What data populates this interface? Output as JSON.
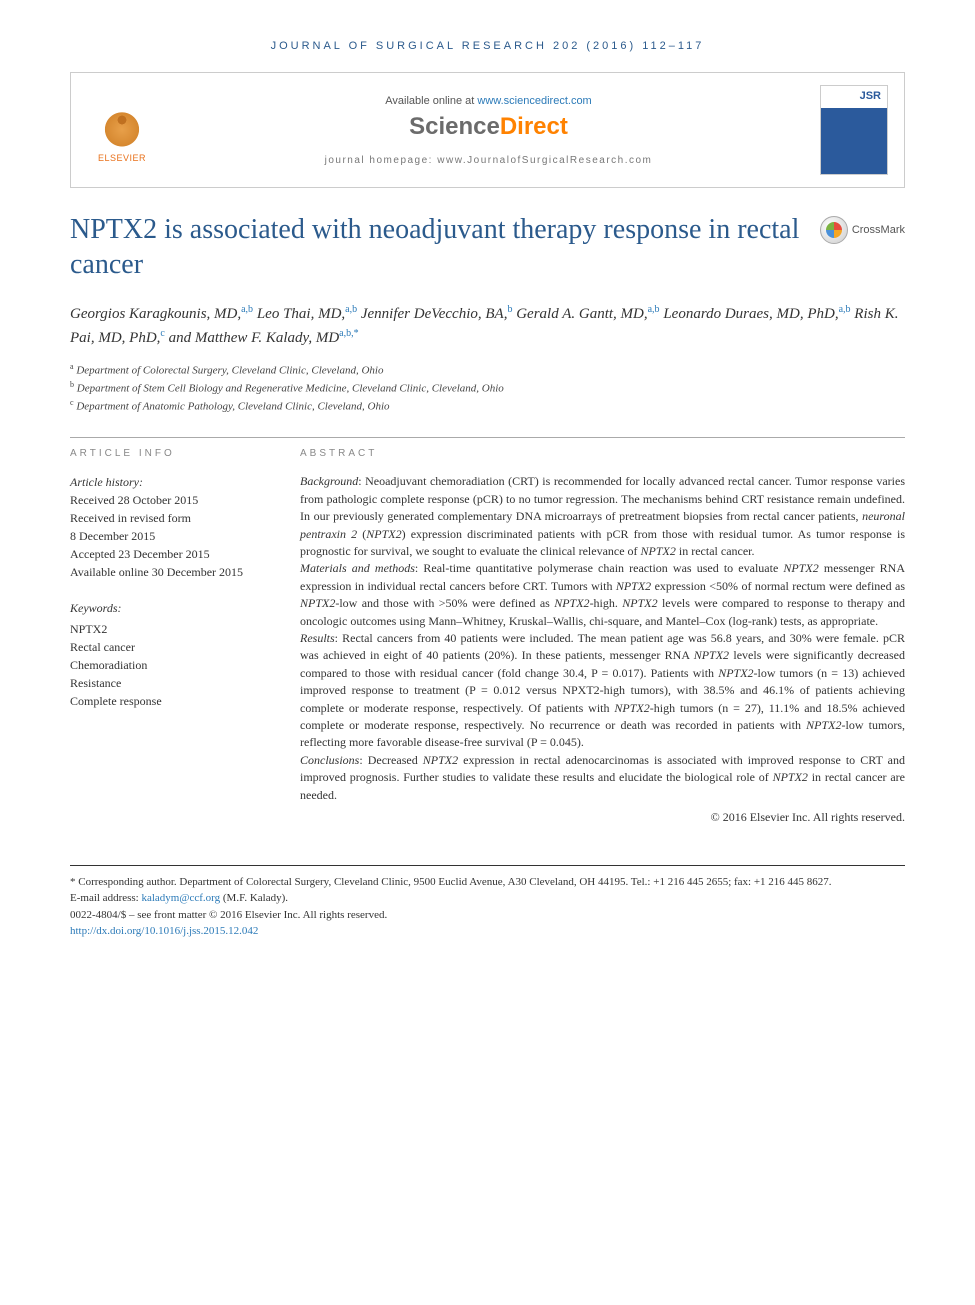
{
  "runningHead": "JOURNAL OF SURGICAL RESEARCH 202 (2016) 112–117",
  "header": {
    "availableText": "Available online at ",
    "availableLink": "www.sciencedirect.com",
    "sdScience": "Science",
    "sdDirect": "Direct",
    "homepagePrefix": "journal homepage: ",
    "homepage": "www.JournalofSurgicalResearch.com",
    "elsevier": "ELSEVIER",
    "jsrLabel": "JSR"
  },
  "crossmark": "CrossMark",
  "title": "NPTX2 is associated with neoadjuvant therapy response in rectal cancer",
  "authorsHtml": "Georgios Karagkounis, MD,<sup>a,b</sup> Leo Thai, MD,<sup>a,b</sup> Jennifer DeVecchio, BA,<sup>b</sup> Gerald A. Gantt, MD,<sup>a,b</sup> Leonardo Duraes, MD, PhD,<sup>a,b</sup> Rish K. Pai, MD, PhD,<sup>c</sup> <span class=\"and\">and</span> Matthew F. Kalady, MD<sup>a,b,*</sup>",
  "affiliations": [
    {
      "sup": "a",
      "text": "Department of Colorectal Surgery, Cleveland Clinic, Cleveland, Ohio"
    },
    {
      "sup": "b",
      "text": "Department of Stem Cell Biology and Regenerative Medicine, Cleveland Clinic, Cleveland, Ohio"
    },
    {
      "sup": "c",
      "text": "Department of Anatomic Pathology, Cleveland Clinic, Cleveland, Ohio"
    }
  ],
  "articleInfo": {
    "head": "ARTICLE INFO",
    "historyLabel": "Article history:",
    "history": [
      "Received 28 October 2015",
      "Received in revised form",
      "8 December 2015",
      "Accepted 23 December 2015",
      "Available online 30 December 2015"
    ],
    "keywordsLabel": "Keywords:",
    "keywords": [
      "NPTX2",
      "Rectal cancer",
      "Chemoradiation",
      "Resistance",
      "Complete response"
    ]
  },
  "abstract": {
    "head": "ABSTRACT",
    "sections": [
      {
        "label": "Background",
        "text": "Neoadjuvant chemoradiation (CRT) is recommended for locally advanced rectal cancer. Tumor response varies from pathologic complete response (pCR) to no tumor regression. The mechanisms behind CRT resistance remain undefined. In our previously generated complementary DNA microarrays of pretreatment biopsies from rectal cancer patients, neuronal pentraxin 2 (NPTX2) expression discriminated patients with pCR from those with residual tumor. As tumor response is prognostic for survival, we sought to evaluate the clinical relevance of NPTX2 in rectal cancer."
      },
      {
        "label": "Materials and methods",
        "text": "Real-time quantitative polymerase chain reaction was used to evaluate NPTX2 messenger RNA expression in individual rectal cancers before CRT. Tumors with NPTX2 expression <50% of normal rectum were defined as NPTX2-low and those with >50% were defined as NPTX2-high. NPTX2 levels were compared to response to therapy and oncologic outcomes using Mann–Whitney, Kruskal–Wallis, chi-square, and Mantel–Cox (log-rank) tests, as appropriate."
      },
      {
        "label": "Results",
        "text": "Rectal cancers from 40 patients were included. The mean patient age was 56.8 years, and 30% were female. pCR was achieved in eight of 40 patients (20%). In these patients, messenger RNA NPTX2 levels were significantly decreased compared to those with residual cancer (fold change 30.4, P = 0.017). Patients with NPTX2-low tumors (n = 13) achieved improved response to treatment (P = 0.012 versus NPXT2-high tumors), with 38.5% and 46.1% of patients achieving complete or moderate response, respectively. Of patients with NPTX2-high tumors (n = 27), 11.1% and 18.5% achieved complete or moderate response, respectively. No recurrence or death was recorded in patients with NPTX2-low tumors, reflecting more favorable disease-free survival (P = 0.045)."
      },
      {
        "label": "Conclusions",
        "text": "Decreased NPTX2 expression in rectal adenocarcinomas is associated with improved response to CRT and improved prognosis. Further studies to validate these results and elucidate the biological role of NPTX2 in rectal cancer are needed."
      }
    ],
    "copyright": "© 2016 Elsevier Inc. All rights reserved."
  },
  "footer": {
    "corresponding": "* Corresponding author. Department of Colorectal Surgery, Cleveland Clinic, 9500 Euclid Avenue, A30 Cleveland, OH 44195. Tel.: +1 216 445 2655; fax: +1 216 445 8627.",
    "emailLabel": "E-mail address: ",
    "email": "kaladym@ccf.org",
    "emailSuffix": " (M.F. Kalady).",
    "issn": "0022-4804/$ – see front matter © 2016 Elsevier Inc. All rights reserved.",
    "doi": "http://dx.doi.org/10.1016/j.jss.2015.12.042"
  },
  "colors": {
    "headingBlue": "#2b5a8c",
    "linkBlue": "#2b7ab8",
    "sdOrange": "#ff8200",
    "sdGrey": "#6b6b6b",
    "elsevierOrange": "#e8701a"
  },
  "layout": {
    "pageWidth": 975,
    "pageHeight": 1305,
    "leftColWidth": 200,
    "titleFontSize": 28,
    "bodyFontSize": 12
  }
}
